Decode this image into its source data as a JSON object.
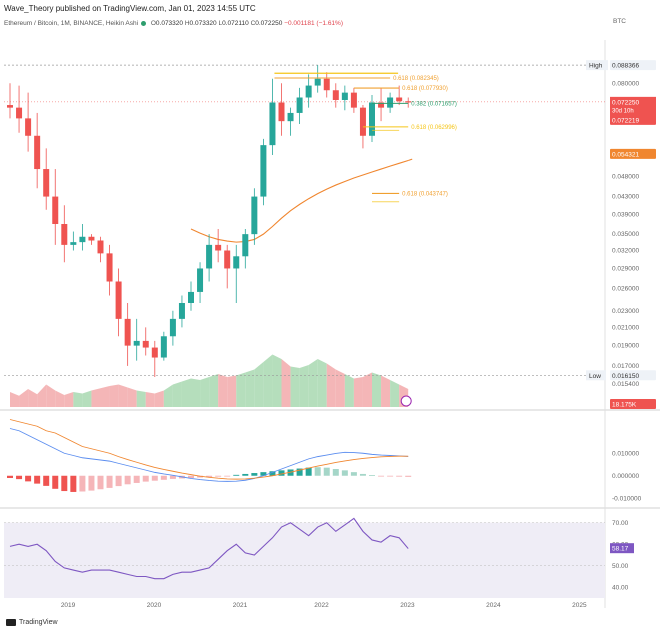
{
  "header": {
    "publisher": "Wave_Theory published on TradingView.com, Jan 01, 2023 14:55 UTC"
  },
  "legend": {
    "symbol": "Ethereum / Bitcoin, 1M, BINANCE, Heikin Ashi",
    "o_label": "O",
    "o": "0.073320",
    "h_label": "H",
    "h": "0.073320",
    "l_label": "L",
    "l": "0.072110",
    "c_label": "C",
    "c": "0.072250",
    "change": "−0.001181 (−1.61%)"
  },
  "currency": "BTC",
  "footer": {
    "brand": "TradingView"
  },
  "colors": {
    "up": "#26a69a",
    "down": "#ef5350",
    "ma": "#f0862f",
    "fib_gold": "#f5c518",
    "fib_orange": "#f0a030",
    "fib_green": "#2e9e6e",
    "macd": "#5b8def",
    "signal": "#f0862f",
    "rsi": "#7e57c2"
  },
  "chart_data": [
    {
      "type": "candlestick",
      "title": "Ethereum / Bitcoin, 1M, BINANCE, Heikin Ashi",
      "y_scale": "log",
      "ylim": [
        0.0135,
        0.096
      ],
      "y_ticks": [
        "0.088366",
        "0.080000",
        "0.072000",
        "0.065000",
        "0.054321",
        "0.048000",
        "0.043000",
        "0.039000",
        "0.035000",
        "0.032000",
        "0.029000",
        "0.026000",
        "0.023000",
        "0.021000",
        "0.019000",
        "0.017000",
        "0.016150",
        "0.015400"
      ],
      "x_ticks": [
        "2019",
        "2020",
        "2021",
        "2022",
        "2023",
        "2024",
        "2025"
      ],
      "candles": [
        {
          "o": 0.071,
          "h": 0.08,
          "l": 0.066,
          "c": 0.07
        },
        {
          "o": 0.07,
          "h": 0.079,
          "l": 0.061,
          "c": 0.066
        },
        {
          "o": 0.066,
          "h": 0.076,
          "l": 0.055,
          "c": 0.06
        },
        {
          "o": 0.06,
          "h": 0.068,
          "l": 0.045,
          "c": 0.05
        },
        {
          "o": 0.05,
          "h": 0.056,
          "l": 0.04,
          "c": 0.043
        },
        {
          "o": 0.043,
          "h": 0.05,
          "l": 0.033,
          "c": 0.037
        },
        {
          "o": 0.037,
          "h": 0.041,
          "l": 0.03,
          "c": 0.033
        },
        {
          "o": 0.033,
          "h": 0.0355,
          "l": 0.032,
          "c": 0.0335
        },
        {
          "o": 0.0335,
          "h": 0.037,
          "l": 0.032,
          "c": 0.0345
        },
        {
          "o": 0.0345,
          "h": 0.035,
          "l": 0.033,
          "c": 0.0338
        },
        {
          "o": 0.0338,
          "h": 0.0345,
          "l": 0.03,
          "c": 0.0315
        },
        {
          "o": 0.0315,
          "h": 0.033,
          "l": 0.025,
          "c": 0.027
        },
        {
          "o": 0.027,
          "h": 0.029,
          "l": 0.02,
          "c": 0.022
        },
        {
          "o": 0.022,
          "h": 0.024,
          "l": 0.017,
          "c": 0.019
        },
        {
          "o": 0.019,
          "h": 0.022,
          "l": 0.0175,
          "c": 0.0195
        },
        {
          "o": 0.0195,
          "h": 0.021,
          "l": 0.018,
          "c": 0.0188
        },
        {
          "o": 0.0188,
          "h": 0.0195,
          "l": 0.016,
          "c": 0.0178
        },
        {
          "o": 0.0178,
          "h": 0.0205,
          "l": 0.0175,
          "c": 0.02
        },
        {
          "o": 0.02,
          "h": 0.023,
          "l": 0.019,
          "c": 0.022
        },
        {
          "o": 0.022,
          "h": 0.025,
          "l": 0.021,
          "c": 0.024
        },
        {
          "o": 0.024,
          "h": 0.027,
          "l": 0.023,
          "c": 0.0255
        },
        {
          "o": 0.0255,
          "h": 0.03,
          "l": 0.024,
          "c": 0.029
        },
        {
          "o": 0.029,
          "h": 0.035,
          "l": 0.027,
          "c": 0.033
        },
        {
          "o": 0.033,
          "h": 0.036,
          "l": 0.03,
          "c": 0.032
        },
        {
          "o": 0.032,
          "h": 0.033,
          "l": 0.026,
          "c": 0.029
        },
        {
          "o": 0.029,
          "h": 0.033,
          "l": 0.024,
          "c": 0.031
        },
        {
          "o": 0.031,
          "h": 0.036,
          "l": 0.029,
          "c": 0.035
        },
        {
          "o": 0.035,
          "h": 0.045,
          "l": 0.033,
          "c": 0.043
        },
        {
          "o": 0.043,
          "h": 0.059,
          "l": 0.041,
          "c": 0.057
        },
        {
          "o": 0.057,
          "h": 0.082,
          "l": 0.054,
          "c": 0.072
        },
        {
          "o": 0.072,
          "h": 0.08,
          "l": 0.06,
          "c": 0.065
        },
        {
          "o": 0.065,
          "h": 0.07,
          "l": 0.06,
          "c": 0.068
        },
        {
          "o": 0.068,
          "h": 0.078,
          "l": 0.064,
          "c": 0.074
        },
        {
          "o": 0.074,
          "h": 0.084,
          "l": 0.07,
          "c": 0.079
        },
        {
          "o": 0.079,
          "h": 0.0884,
          "l": 0.076,
          "c": 0.082
        },
        {
          "o": 0.082,
          "h": 0.085,
          "l": 0.074,
          "c": 0.077
        },
        {
          "o": 0.077,
          "h": 0.08,
          "l": 0.07,
          "c": 0.073
        },
        {
          "o": 0.073,
          "h": 0.079,
          "l": 0.069,
          "c": 0.076
        },
        {
          "o": 0.076,
          "h": 0.078,
          "l": 0.068,
          "c": 0.07
        },
        {
          "o": 0.07,
          "h": 0.071,
          "l": 0.056,
          "c": 0.06
        },
        {
          "o": 0.06,
          "h": 0.075,
          "l": 0.058,
          "c": 0.072
        },
        {
          "o": 0.072,
          "h": 0.078,
          "l": 0.065,
          "c": 0.07
        },
        {
          "o": 0.07,
          "h": 0.076,
          "l": 0.068,
          "c": 0.074
        },
        {
          "o": 0.074,
          "h": 0.079,
          "l": 0.071,
          "c": 0.0725
        },
        {
          "o": 0.0725,
          "h": 0.074,
          "l": 0.07,
          "c": 0.0722
        }
      ],
      "moving_average": [
        null,
        null,
        null,
        null,
        null,
        null,
        null,
        null,
        null,
        null,
        null,
        null,
        null,
        null,
        null,
        null,
        null,
        null,
        null,
        null,
        0.036,
        0.0352,
        0.0345,
        0.034,
        0.0337,
        0.0335,
        0.0336,
        0.034,
        0.035,
        0.0365,
        0.0382,
        0.0398,
        0.0412,
        0.0425,
        0.0437,
        0.0448,
        0.0458,
        0.0467,
        0.0476,
        0.0484,
        0.0492,
        0.05,
        0.0508,
        0.0516,
        0.0524
      ],
      "levels": [
        {
          "label": "High",
          "value": "0.088366"
        },
        {
          "label": "Low",
          "value": "0.016150"
        }
      ],
      "fibonacci": [
        {
          "label": "0.618 (0.082345)",
          "value": 0.082345
        },
        {
          "label": "0.618 (0.077930)",
          "value": 0.07793
        },
        {
          "label": "0.382 (0.071657)",
          "value": 0.071657
        },
        {
          "label": "0.618 (0.062996)",
          "value": 0.062996
        },
        {
          "label": "0.618 (0.043747)",
          "value": 0.043747
        }
      ],
      "price_tags": [
        {
          "value": "0.072250",
          "sub": "30d 10h"
        },
        {
          "value": "0.072219"
        },
        {
          "value": "0.054321"
        }
      ],
      "volume_label": "18.175K",
      "volume": [
        20,
        15,
        24,
        17,
        30,
        22,
        16,
        20,
        18,
        22,
        25,
        28,
        30,
        26,
        22,
        20,
        18,
        22,
        30,
        34,
        38,
        36,
        40,
        44,
        40,
        42,
        46,
        50,
        60,
        70,
        64,
        54,
        52,
        56,
        64,
        58,
        50,
        44,
        38,
        40,
        46,
        42,
        36,
        30,
        24
      ]
    },
    {
      "type": "line",
      "panel": "MACD",
      "y_ticks": [
        "0.010000",
        "0.000000",
        "-0.010000"
      ],
      "series": [
        {
          "role": "macd",
          "values": [
            0.021,
            0.02,
            0.018,
            0.016,
            0.014,
            0.012,
            0.01,
            0.009,
            0.008,
            0.0075,
            0.007,
            0.0065,
            0.0055,
            0.0045,
            0.0035,
            0.0025,
            0.0015,
            0.0008,
            0.0002,
            -0.0005,
            -0.0012,
            -0.0017,
            -0.0021,
            -0.0024,
            -0.0025,
            -0.0024,
            -0.002,
            -0.0012,
            0.0,
            0.0015,
            0.003,
            0.0045,
            0.006,
            0.0075,
            0.0085,
            0.0092,
            0.0099,
            0.0104,
            0.0103,
            0.01,
            0.0095,
            0.0092,
            0.009,
            0.0088,
            0.0086
          ]
        },
        {
          "role": "signal",
          "values": [
            0.025,
            0.024,
            0.023,
            0.022,
            0.02,
            0.019,
            0.017,
            0.015,
            0.013,
            0.012,
            0.011,
            0.01,
            0.0085,
            0.0072,
            0.006,
            0.0048,
            0.0037,
            0.0028,
            0.002,
            0.0012,
            0.0005,
            -0.0002,
            -0.0007,
            -0.0011,
            -0.0014,
            -0.0015,
            -0.0014,
            -0.0011,
            -0.0006,
            0.0,
            0.0008,
            0.0016,
            0.0025,
            0.0034,
            0.0043,
            0.0051,
            0.0059,
            0.0066,
            0.0072,
            0.0077,
            0.0081,
            0.0084,
            0.0086,
            0.0087,
            0.0087
          ]
        }
      ],
      "histogram": [
        -0.001,
        -0.0015,
        -0.0025,
        -0.0035,
        -0.0045,
        -0.0058,
        -0.0068,
        -0.0072,
        -0.007,
        -0.0066,
        -0.006,
        -0.0054,
        -0.0046,
        -0.0038,
        -0.0032,
        -0.0026,
        -0.0022,
        -0.0018,
        -0.0014,
        -0.0012,
        -0.001,
        -0.0008,
        -0.0006,
        -0.0004,
        -0.0002,
        0.0004,
        0.0008,
        0.0012,
        0.0016,
        0.002,
        0.0024,
        0.0028,
        0.0032,
        0.0036,
        0.0038,
        0.0036,
        0.003,
        0.0024,
        0.0016,
        0.0008,
        0.0003,
        -0.0002,
        -0.0003,
        -0.0004,
        -0.0005
      ]
    },
    {
      "type": "line",
      "panel": "RSI",
      "ylim": [
        35,
        75
      ],
      "y_ticks": [
        "70.00",
        "60.00",
        "50.00",
        "40.00"
      ],
      "current_label": "58.17",
      "values": [
        59,
        60,
        59,
        60,
        57,
        52,
        49,
        48,
        47,
        48,
        48,
        48,
        47,
        46,
        45,
        45,
        44,
        44,
        46,
        47,
        47,
        48,
        49,
        53,
        57,
        60,
        56,
        55,
        59,
        63,
        68,
        70,
        67,
        64,
        68,
        70,
        66,
        69,
        72,
        66,
        62,
        61,
        64,
        63,
        58
      ]
    }
  ]
}
